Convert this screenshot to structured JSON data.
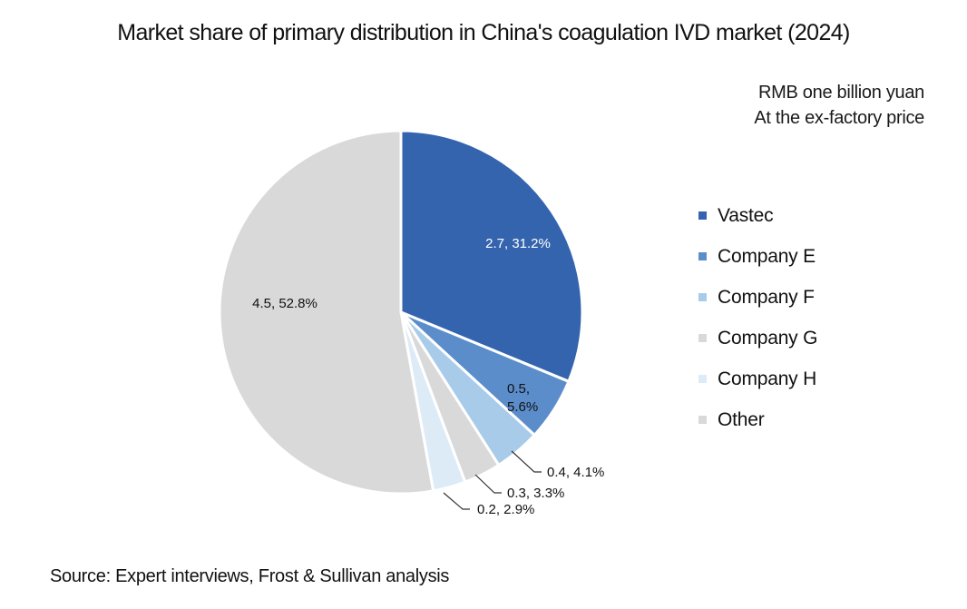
{
  "title": "Market share of primary distribution in China's coagulation IVD market (2024)",
  "unit_lines": [
    "RMB one billion yuan",
    "At the ex-factory price"
  ],
  "source": "Source: Expert interviews, Frost & Sullivan analysis",
  "legend": [
    {
      "label": "Vastec",
      "color": "#3564AF"
    },
    {
      "label": "Company E",
      "color": "#5B8DCB"
    },
    {
      "label": "Company F",
      "color": "#A8CBEA"
    },
    {
      "label": "Company G",
      "color": "#D9D9D9"
    },
    {
      "label": "Company H",
      "color": "#DDEBF7"
    },
    {
      "label": "Other",
      "color": "#D9D9D9"
    }
  ],
  "slice_labels": {
    "vastec": "2.7, 31.2%",
    "company_e_line1": "0.5,",
    "company_e_line2": "5.6%",
    "company_f": "0.4, 4.1%",
    "company_g": "0.3, 3.3%",
    "company_h": "0.2, 2.9%",
    "other": "4.5, 52.8%"
  },
  "chart_data": {
    "type": "pie",
    "title": "Market share of primary distribution in China's coagulation IVD market (2024)",
    "subtitle": "RMB one billion yuan, At the ex-factory price",
    "categories": [
      "Vastec",
      "Company E",
      "Company F",
      "Company G",
      "Company H",
      "Other"
    ],
    "values": [
      2.7,
      0.5,
      0.4,
      0.3,
      0.2,
      4.5
    ],
    "percentages": [
      31.2,
      5.6,
      4.1,
      3.3,
      2.9,
      52.8
    ],
    "colors": [
      "#3564AF",
      "#5B8DCB",
      "#A8CBEA",
      "#D9D9D9",
      "#DDEBF7",
      "#D9D9D9"
    ],
    "start_angle": "12 o'clock",
    "direction": "clockwise",
    "legend_position": "right",
    "source": "Source: Expert interviews, Frost & Sullivan analysis"
  }
}
